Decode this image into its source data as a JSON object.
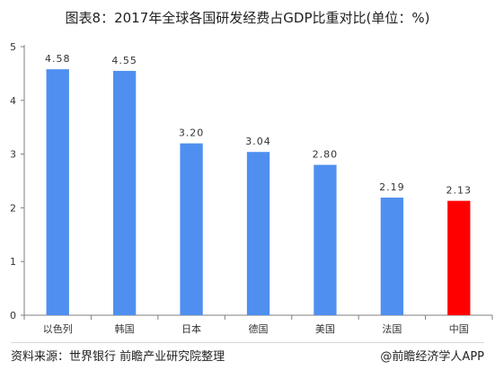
{
  "title": "图表8：2017年全球各国研发经费占GDP比重对比(单位：%)",
  "footer": {
    "source": "资料来源：世界银行 前瞻产业研究院整理",
    "credit": "@前瞻经济学人APP"
  },
  "colors": {
    "bar": "#4f8ff0",
    "highlight": "#ff0000"
  },
  "chart_data": {
    "type": "bar",
    "title": "图表8：2017年全球各国研发经费占GDP比重对比(单位：%)",
    "xlabel": "",
    "ylabel": "",
    "ylim": [
      0,
      5
    ],
    "yticks": [
      "0",
      "1",
      "2",
      "3",
      "4",
      "5"
    ],
    "grid": false,
    "categories": [
      "以色列",
      "韩国",
      "日本",
      "德国",
      "美国",
      "法国",
      "中国"
    ],
    "values": [
      4.58,
      4.55,
      3.2,
      3.04,
      2.8,
      2.19,
      2.13
    ],
    "labels": [
      "4.58",
      "4.55",
      "3.20",
      "3.04",
      "2.80",
      "2.19",
      "2.13"
    ],
    "highlight_category": "中国"
  }
}
